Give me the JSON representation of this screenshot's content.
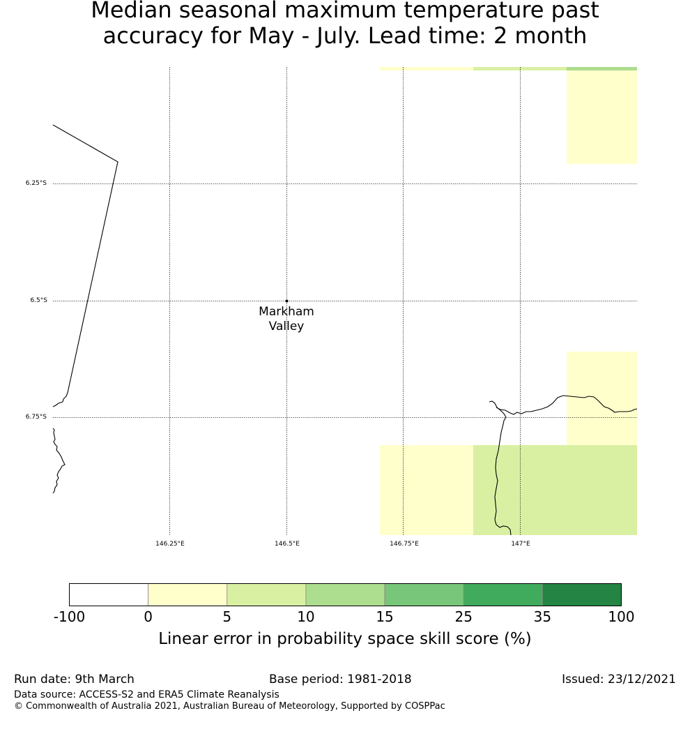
{
  "title_line1": "Median seasonal maximum temperature past",
  "title_line2": "accuracy for May - July. Lead time: 2 month",
  "map": {
    "lat_labels": [
      "6.25°S",
      "6.5°S",
      "6.75°S"
    ],
    "lon_labels": [
      "146.25°E",
      "146.5°E",
      "146.75°E",
      "147°E"
    ],
    "place": {
      "line1": "Markham",
      "line2": "Valley"
    },
    "colors": {
      "bin_0_5": "#ffffcc",
      "bin_5_10": "#d9f0a3",
      "bin_10_15": "#addd8e"
    }
  },
  "colorbar": {
    "ticks": [
      "-100",
      "0",
      "5",
      "10",
      "15",
      "25",
      "35",
      "100"
    ],
    "colors": [
      "#ffffff",
      "#ffffcc",
      "#d9f0a3",
      "#addd8e",
      "#78c679",
      "#41ab5d",
      "#238443"
    ],
    "label": "Linear error in probability space skill score (%)"
  },
  "footer": {
    "run_date": "Run date: 9th March",
    "base_period": "Base period: 1981-2018",
    "issued": "Issued: 23/12/2021",
    "data_source": "Data source: ACCESS-S2 and ERA5 Climate Reanalysis",
    "copyright": "© Commonwealth of Australia 2021, Australian Bureau of Meteorology, Supported by COSPPac"
  }
}
